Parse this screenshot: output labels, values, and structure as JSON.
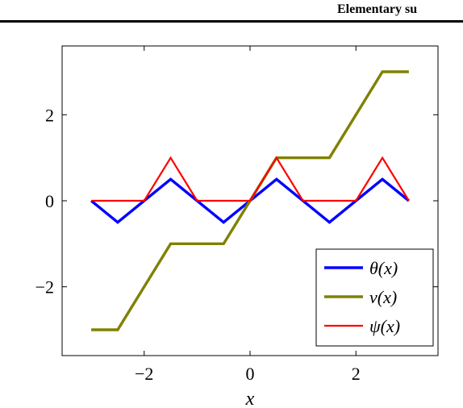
{
  "header": {
    "title": "Elementary su"
  },
  "chart_data": {
    "type": "line",
    "title": "",
    "xlabel": "x",
    "ylabel": "",
    "xlim": [
      -3.55,
      3.55
    ],
    "ylim": [
      -3.6,
      3.6
    ],
    "xticks": [
      -2,
      0,
      2
    ],
    "xtick_labels": [
      "−2",
      "0",
      "2"
    ],
    "yticks": [
      -2,
      0,
      2
    ],
    "ytick_labels": [
      "−2",
      "0",
      "2"
    ],
    "grid": false,
    "legend_position": "bottom-right",
    "series": [
      {
        "name": "θ(x)",
        "color": "#0000ff",
        "x": [
          -3,
          -2.5,
          -1.5,
          -0.5,
          0.5,
          1.5,
          2.5,
          3
        ],
        "y": [
          0,
          -0.5,
          0.5,
          -0.5,
          0.5,
          -0.5,
          0.5,
          0
        ]
      },
      {
        "name": "ν(x)",
        "color": "#808000",
        "x": [
          -3,
          -2.5,
          -1.5,
          -0.5,
          0.5,
          1.5,
          2.5,
          3
        ],
        "y": [
          -3,
          -3,
          -1,
          -1,
          1,
          1,
          3,
          3
        ]
      },
      {
        "name": "ψ(x)",
        "color": "#ff0000",
        "x": [
          -3,
          -2,
          -1.5,
          -1,
          0,
          0.5,
          1,
          2,
          2.5,
          3
        ],
        "y": [
          0,
          0,
          1,
          0,
          0,
          1,
          0,
          0,
          1,
          0
        ]
      }
    ]
  }
}
